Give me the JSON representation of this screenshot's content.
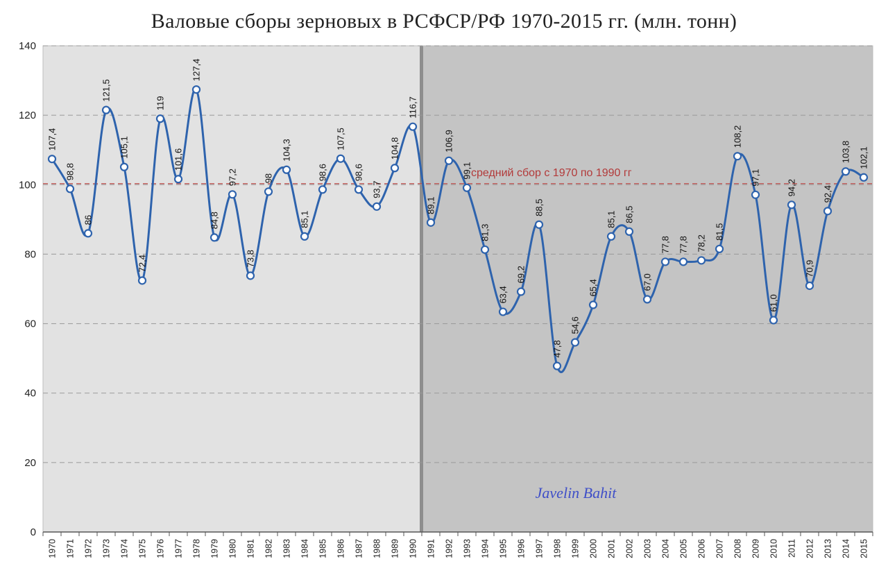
{
  "chart_data": {
    "type": "line",
    "title": "Валовые сборы зерновых в РСФСР/РФ 1970-2015 гг. (млн. тонн)",
    "xlabel": "",
    "ylabel": "",
    "ylim": [
      0,
      140
    ],
    "y_ticks": [
      0,
      20,
      40,
      60,
      80,
      100,
      120,
      140
    ],
    "grid": true,
    "categories": [
      "1970",
      "1971",
      "1972",
      "1973",
      "1974",
      "1975",
      "1976",
      "1977",
      "1978",
      "1979",
      "1980",
      "1981",
      "1982",
      "1983",
      "1984",
      "1985",
      "1986",
      "1987",
      "1988",
      "1989",
      "1990",
      "1991",
      "1992",
      "1993",
      "1994",
      "1995",
      "1996",
      "1997",
      "1998",
      "1999",
      "2000",
      "2001",
      "2002",
      "2003",
      "2004",
      "2005",
      "2006",
      "2007",
      "2008",
      "2009",
      "2010",
      "2011",
      "2012",
      "2013",
      "2014",
      "2015"
    ],
    "series": [
      {
        "values": [
          107.4,
          98.8,
          86,
          121.5,
          105.1,
          72.4,
          119,
          101.6,
          127.4,
          84.8,
          97.2,
          73.8,
          98,
          104.3,
          85.1,
          98.6,
          107.5,
          98.6,
          93.7,
          104.8,
          116.7,
          89.1,
          106.9,
          99.1,
          81.3,
          63.4,
          69.2,
          88.5,
          47.8,
          54.6,
          65.4,
          85.1,
          86.5,
          67.0,
          77.8,
          77.8,
          78.2,
          81.5,
          108.2,
          97.1,
          61.0,
          94.2,
          70.9,
          92.4,
          103.8,
          102.1
        ],
        "labels": [
          "107,4",
          "98,8",
          "86",
          "121,5",
          "105,1",
          "72,4",
          "119",
          "101,6",
          "127,4",
          "84,8",
          "97,2",
          "73,8",
          "98",
          "104,3",
          "85,1",
          "98,6",
          "107,5",
          "98,6",
          "93,7",
          "104,8",
          "116,7",
          "89,1",
          "106,9",
          "99,1",
          "81,3",
          "63,4",
          "69,2",
          "88,5",
          "47,8",
          "54,6",
          "65,4",
          "85,1",
          "86,5",
          "67,0",
          "77,8",
          "77,8",
          "78,2",
          "81,5",
          "108,2",
          "97,1",
          "61,0",
          "94,2",
          "70,9",
          "92,4",
          "103,8",
          "102,1"
        ],
        "color": "#2e63ad"
      }
    ],
    "reference_line": {
      "value": 100.3,
      "label": "средний сбор с 1970 по 1990 гг",
      "color": "#c0504d"
    },
    "regions": [
      {
        "from": "1970",
        "to": "1991",
        "color": "#e2e2e2"
      },
      {
        "from": "1991",
        "to": "2015",
        "color": "#c4c4c4"
      }
    ]
  },
  "watermark": "Javelin Bahit",
  "colors": {
    "grid": "#999999",
    "line": "#2e63ad",
    "marker_fill": "#ffffff"
  }
}
